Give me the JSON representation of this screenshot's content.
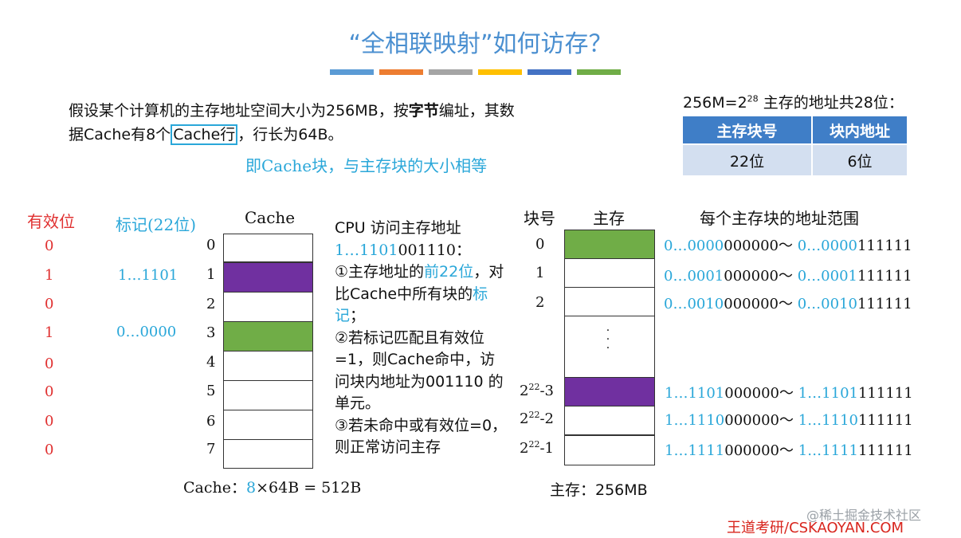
{
  "title": "“全相联映射”如何访存？",
  "bar_colors": [
    "#5b9bd5",
    "#ed7d31",
    "#a5a5a5",
    "#ffc000",
    "#4472c4",
    "#70ad47"
  ],
  "intro": {
    "part1": "假设某个计算机的主存地址空间大小为256MB，按",
    "bold": "字节",
    "part2": "编址，其数据Cache有8个",
    "boxed": "Cache行",
    "part3": "，行长为64B。"
  },
  "intro_note": "即Cache块，与主存块的大小相等",
  "address": {
    "lead": "256M=2",
    "exp": "28",
    "tail": " 主存的地址共28位：",
    "headers": [
      "主存块号",
      "块内地址"
    ],
    "values": [
      "22位",
      "6位"
    ]
  },
  "cache_section": {
    "valid_header": "有效位",
    "tag_header": "标记(22位)",
    "cache_header": "Cache",
    "valid_bits": [
      "0",
      "1",
      "0",
      "1",
      "0",
      "0",
      "0",
      "0"
    ],
    "tags": [
      "",
      "1…1101",
      "",
      "0…0000",
      "",
      "",
      "",
      ""
    ],
    "row_indices": [
      "0",
      "1",
      "2",
      "3",
      "4",
      "5",
      "6",
      "7"
    ],
    "caption_prefix": "Cache：",
    "caption_num": "8",
    "caption_rest": "×64B = 512B"
  },
  "steps": {
    "line1": "CPU 访问主存地址",
    "addr_blue": "1…1101",
    "addr_black": "001110：",
    "s1a": "①主存地址的",
    "s1b": "前22位",
    "s1c": "，对比Cache中所有块的",
    "s1d": "标记",
    "s1e": "；",
    "s2": "②若标记匹配且有效位=1，则Cache命中，访问块内地址为001110 的单元。",
    "s3": "③若未命中或有效位=0，则正常访问主存"
  },
  "memory_section": {
    "blockno_header": "块号",
    "mem_header": "主存",
    "range_header": "每个主存块的地址范围",
    "top_labels": [
      "0",
      "1",
      "2"
    ],
    "bottom_base": "2",
    "bottom_exp": "22",
    "bottom_suffix": [
      "-3",
      "-2",
      "-1"
    ],
    "dots": "·  ·  ·",
    "ranges": [
      {
        "a_blue": "0…0000",
        "a_black": "000000",
        "sep": "～",
        "b_blue": "0…0000",
        "b_black": "111111"
      },
      {
        "a_blue": "0…0001",
        "a_black": "000000",
        "sep": "～",
        "b_blue": "0…0001",
        "b_black": "111111"
      },
      {
        "a_blue": "0…0010",
        "a_black": "000000",
        "sep": "～",
        "b_blue": "0…0010",
        "b_black": "111111"
      },
      {
        "a_blue": "1…1101",
        "a_black": "000000",
        "sep": "～",
        "b_blue": "1…1101",
        "b_black": "111111"
      },
      {
        "a_blue": "1…1110",
        "a_black": "000000",
        "sep": "～",
        "b_blue": "1…1110",
        "b_black": "111111"
      },
      {
        "a_blue": "1…1111",
        "a_black": "000000",
        "sep": "～",
        "b_blue": "1…1111",
        "b_black": "111111"
      }
    ],
    "caption": "主存：256MB"
  },
  "watermark": "@稀土掘金技术社区",
  "brand": "王道考研/CSKAOYAN.COM"
}
